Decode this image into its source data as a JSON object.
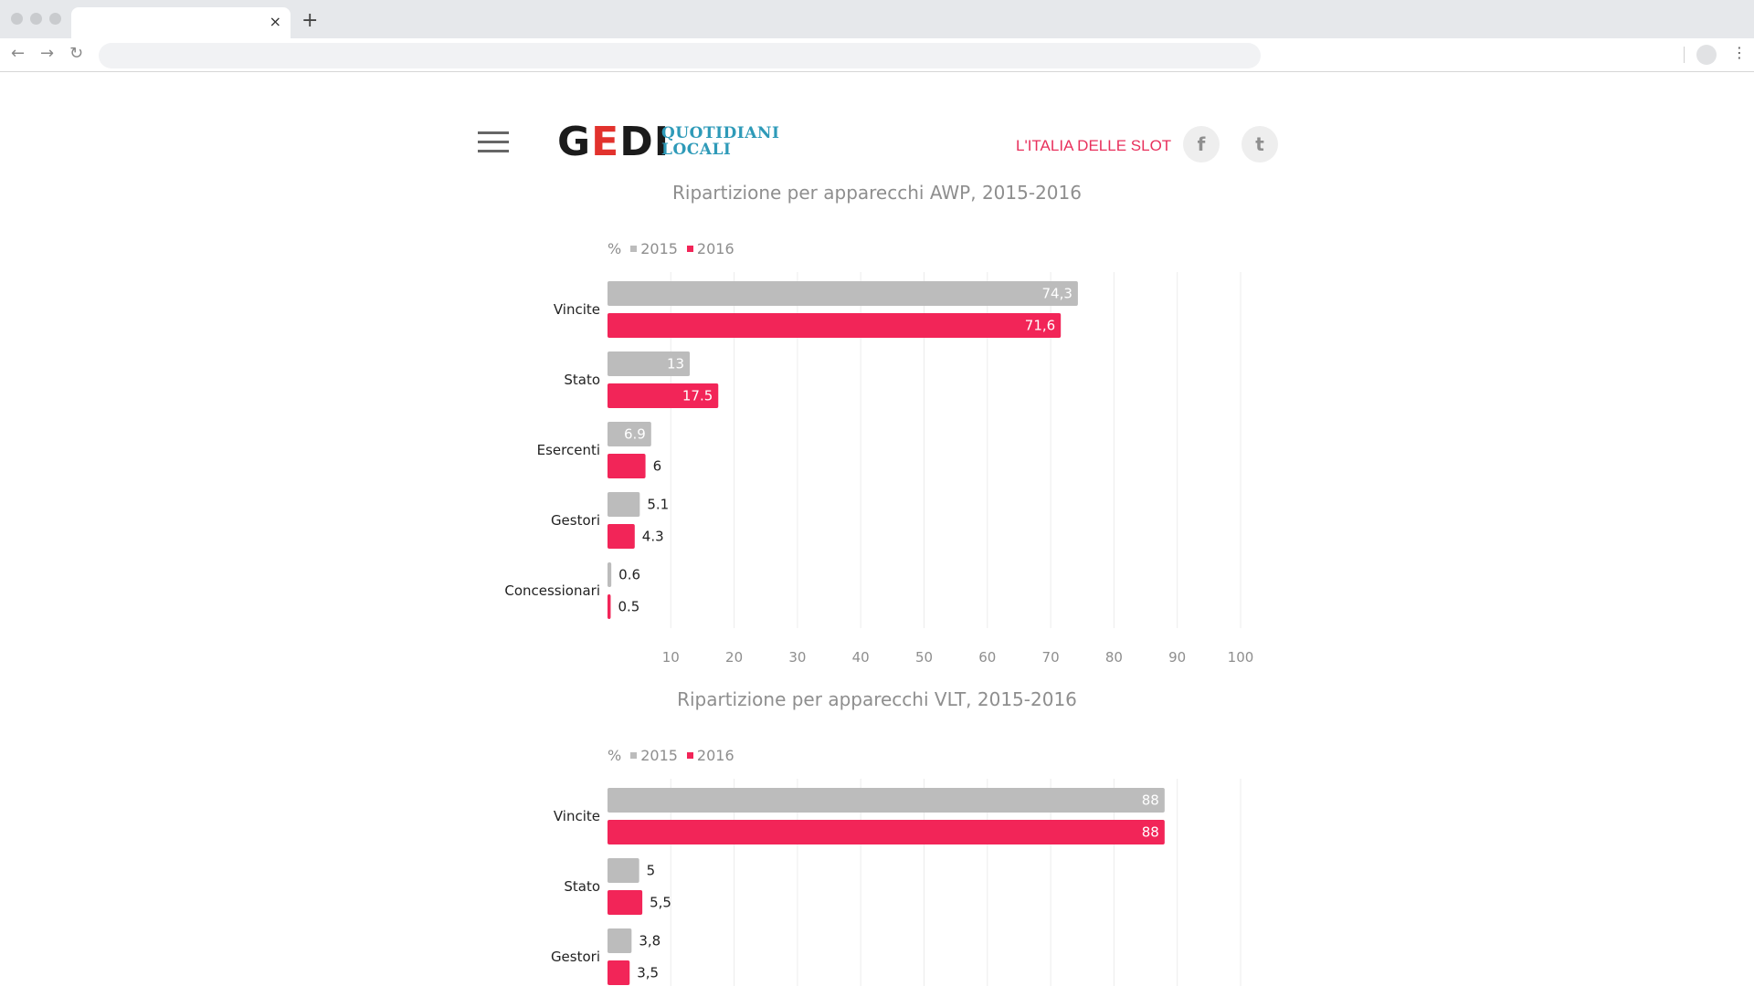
{
  "browser": {
    "tab_close": "×",
    "new_tab": "+",
    "back_icon": "←",
    "forward_icon": "→",
    "reload_icon": "↻",
    "menu_icon": "⋮"
  },
  "header": {
    "logo_main_g": "G",
    "logo_main_e": "E",
    "logo_main_di": "DI",
    "logo_sub_line1": "QUOTIDIANI",
    "logo_sub_line2": "LOCALI",
    "section_title": "L'ITALIA DELLE SLOT",
    "facebook_icon": "f",
    "twitter_icon": "t"
  },
  "legend": {
    "unit": "%",
    "label_2015": "2015",
    "label_2016": "2016"
  },
  "colors": {
    "s2015": "#bcbcbc",
    "s2016": "#f22558",
    "grid": "#ececec",
    "accent": "#e8305c"
  },
  "chart_data": [
    {
      "type": "bar",
      "orientation": "horizontal",
      "title": "Ripartizione per apparecchi AWP, 2015-2016",
      "categories": [
        "Vincite",
        "Stato",
        "Esercenti",
        "Gestori",
        "Concessionari"
      ],
      "series": [
        {
          "name": "2015",
          "values": [
            74.3,
            13,
            6.9,
            5.1,
            0.6
          ],
          "labels": [
            "74,3",
            "13",
            "6.9",
            "5.1",
            "0.6"
          ]
        },
        {
          "name": "2016",
          "values": [
            71.6,
            17.5,
            6,
            4.3,
            0.5
          ],
          "labels": [
            "71,6",
            "17.5",
            "6",
            "4.3",
            "0.5"
          ]
        }
      ],
      "xlim": [
        0,
        100
      ],
      "ticks": [
        10,
        20,
        30,
        40,
        50,
        60,
        70,
        80,
        90,
        100
      ],
      "grid": true
    },
    {
      "type": "bar",
      "orientation": "horizontal",
      "title": "Ripartizione per apparecchi VLT, 2015-2016",
      "categories": [
        "Vincite",
        "Stato",
        "Gestori"
      ],
      "series": [
        {
          "name": "2015",
          "values": [
            88,
            5,
            3.8
          ],
          "labels": [
            "88",
            "5",
            "3,8"
          ]
        },
        {
          "name": "2016",
          "values": [
            88,
            5.5,
            3.5
          ],
          "labels": [
            "88",
            "5,5",
            "3,5"
          ]
        }
      ],
      "xlim": [
        0,
        100
      ],
      "ticks": [
        10,
        20,
        30,
        40,
        50,
        60,
        70,
        80,
        90,
        100
      ],
      "grid": true
    }
  ]
}
